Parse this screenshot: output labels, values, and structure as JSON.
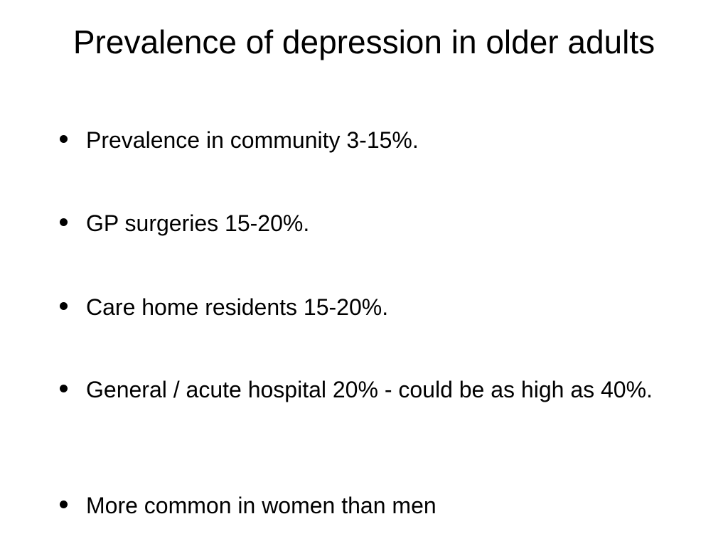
{
  "slide": {
    "title": "Prevalence of depression in older adults",
    "bullets": [
      "Prevalence in community 3-15%.",
      "GP surgeries 15-20%.",
      "Care home residents 15-20%.",
      "General / acute hospital 20% - could be as high as 40%.",
      "More common in women than men"
    ]
  }
}
